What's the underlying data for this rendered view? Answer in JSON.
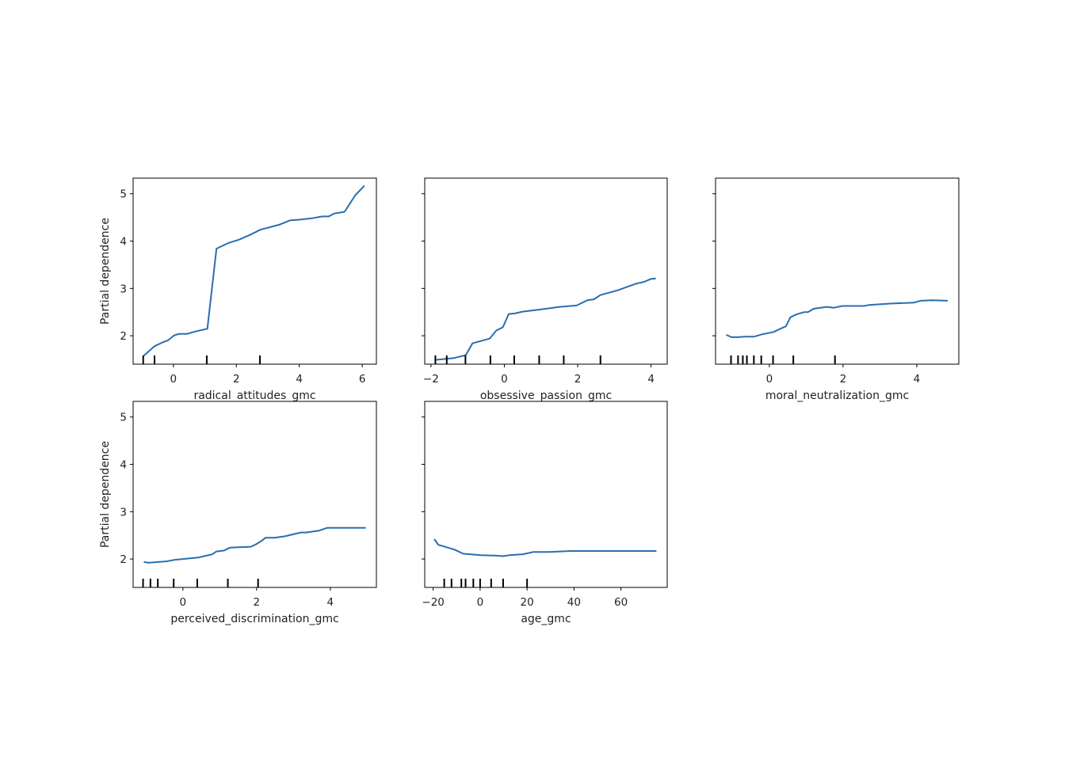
{
  "chart_data": [
    {
      "type": "line",
      "xlabel": "radical_attitudes_gmc",
      "ylabel": "Partial dependence",
      "xlim": [
        -1.28,
        6.45
      ],
      "ylim": [
        1.4,
        5.33
      ],
      "xticks": [
        0,
        2,
        4,
        6
      ],
      "xtick_labels": [
        "0",
        "2",
        "4",
        "6"
      ],
      "yticks": [
        2,
        3,
        4,
        5
      ],
      "ytick_labels": [
        "2",
        "3",
        "4",
        "5"
      ],
      "x": [
        -0.94,
        -0.6,
        -0.31,
        -0.18,
        0.03,
        0.19,
        0.44,
        0.7,
        1.08,
        1.37,
        1.75,
        2.09,
        2.46,
        2.76,
        3.38,
        3.72,
        3.97,
        4.39,
        4.73,
        4.94,
        5.1,
        5.44,
        5.78,
        6.07
      ],
      "y": [
        1.58,
        1.78,
        1.87,
        1.9,
        2.01,
        2.04,
        2.04,
        2.09,
        2.15,
        3.84,
        3.96,
        4.03,
        4.14,
        4.24,
        4.35,
        4.44,
        4.45,
        4.48,
        4.52,
        4.52,
        4.58,
        4.62,
        4.97,
        5.17
      ],
      "deciles": [
        -0.96,
        -0.6,
        1.06,
        2.75
      ]
    },
    {
      "type": "line",
      "xlabel": "obsessive_passion_gmc",
      "ylabel": "",
      "xlim": [
        -2.17,
        4.44
      ],
      "ylim": [
        1.4,
        5.33
      ],
      "xticks": [
        -2,
        0,
        2,
        4
      ],
      "xtick_labels": [
        "−2",
        "0",
        "2",
        "4"
      ],
      "yticks": [
        2,
        3,
        4,
        5
      ],
      "ytick_labels": [],
      "x": [
        -1.88,
        -1.37,
        -1.05,
        -0.87,
        -0.4,
        -0.22,
        -0.04,
        0.12,
        0.28,
        0.5,
        0.93,
        1.51,
        1.97,
        2.26,
        2.44,
        2.62,
        3.09,
        3.59,
        3.81,
        3.99,
        4.13
      ],
      "y": [
        1.49,
        1.53,
        1.59,
        1.84,
        1.94,
        2.11,
        2.18,
        2.46,
        2.47,
        2.51,
        2.55,
        2.61,
        2.64,
        2.75,
        2.77,
        2.86,
        2.96,
        3.1,
        3.14,
        3.2,
        3.21
      ],
      "deciles": [
        -1.88,
        -1.57,
        -1.06,
        -0.38,
        0.27,
        0.95,
        1.62,
        2.62
      ]
    },
    {
      "type": "line",
      "xlabel": "moral_neutralization_gmc",
      "ylabel": "",
      "xlim": [
        -1.46,
        5.14
      ],
      "ylim": [
        1.4,
        5.33
      ],
      "xticks": [
        0,
        2,
        4
      ],
      "xtick_labels": [
        "0",
        "2",
        "4"
      ],
      "yticks": [
        2,
        3,
        4,
        5
      ],
      "ytick_labels": [],
      "x": [
        -1.17,
        -1.03,
        -0.85,
        -0.67,
        -0.42,
        -0.2,
        0.12,
        0.27,
        0.45,
        0.57,
        0.73,
        0.95,
        1.05,
        1.2,
        1.56,
        1.74,
        1.98,
        2.56,
        2.7,
        3.27,
        3.92,
        4.1,
        4.42,
        4.84
      ],
      "y": [
        2.02,
        1.97,
        1.97,
        1.98,
        1.98,
        2.03,
        2.08,
        2.14,
        2.2,
        2.39,
        2.45,
        2.5,
        2.5,
        2.57,
        2.61,
        2.59,
        2.63,
        2.63,
        2.65,
        2.68,
        2.7,
        2.74,
        2.75,
        2.74
      ],
      "deciles": [
        -1.04,
        -0.85,
        -0.72,
        -0.61,
        -0.42,
        -0.22,
        0.1,
        0.65,
        1.78
      ]
    },
    {
      "type": "line",
      "xlabel": "perceived_discrimination_gmc",
      "ylabel": "Partial dependence",
      "xlim": [
        -1.35,
        5.25
      ],
      "ylim": [
        1.4,
        5.33
      ],
      "xticks": [
        0,
        2,
        4
      ],
      "xtick_labels": [
        "0",
        "2",
        "4"
      ],
      "yticks": [
        2,
        3,
        4,
        5
      ],
      "ytick_labels": [
        "2",
        "3",
        "4",
        "5"
      ],
      "x": [
        -1.06,
        -0.95,
        -0.45,
        -0.24,
        0.41,
        0.8,
        0.91,
        1.12,
        1.27,
        1.84,
        1.98,
        2.13,
        2.24,
        2.49,
        2.77,
        3.2,
        3.34,
        3.7,
        3.92,
        4.96
      ],
      "y": [
        1.94,
        1.92,
        1.95,
        1.98,
        2.03,
        2.1,
        2.16,
        2.18,
        2.24,
        2.26,
        2.31,
        2.38,
        2.45,
        2.45,
        2.48,
        2.56,
        2.56,
        2.6,
        2.66,
        2.66
      ],
      "deciles": [
        -1.08,
        -0.88,
        -0.68,
        -0.25,
        0.39,
        1.22,
        2.04
      ]
    },
    {
      "type": "line",
      "xlabel": "age_gmc",
      "ylabel": "",
      "xlim": [
        -23.6,
        79.7
      ],
      "ylim": [
        1.4,
        5.33
      ],
      "xticks": [
        -20,
        0,
        20,
        40,
        60
      ],
      "xtick_labels": [
        "−20",
        "0",
        "20",
        "40",
        "60"
      ],
      "yticks": [
        2,
        3,
        4,
        5
      ],
      "ytick_labels": [],
      "x": [
        -19.5,
        -17.8,
        -14.4,
        -11.0,
        -7.1,
        -4.3,
        0.2,
        7.0,
        9.8,
        12.6,
        18.2,
        22.7,
        29.5,
        38.5,
        75.1
      ],
      "y": [
        2.42,
        2.3,
        2.25,
        2.2,
        2.11,
        2.1,
        2.08,
        2.07,
        2.06,
        2.08,
        2.1,
        2.15,
        2.15,
        2.17,
        2.17
      ],
      "deciles": [
        -15.3,
        -12.2,
        -8.0,
        -6.2,
        -2.9,
        0,
        4.7,
        9.8,
        20.0
      ]
    }
  ],
  "colors": {
    "line": "#2a6db0",
    "axes": "#000000",
    "text": "#222222"
  }
}
